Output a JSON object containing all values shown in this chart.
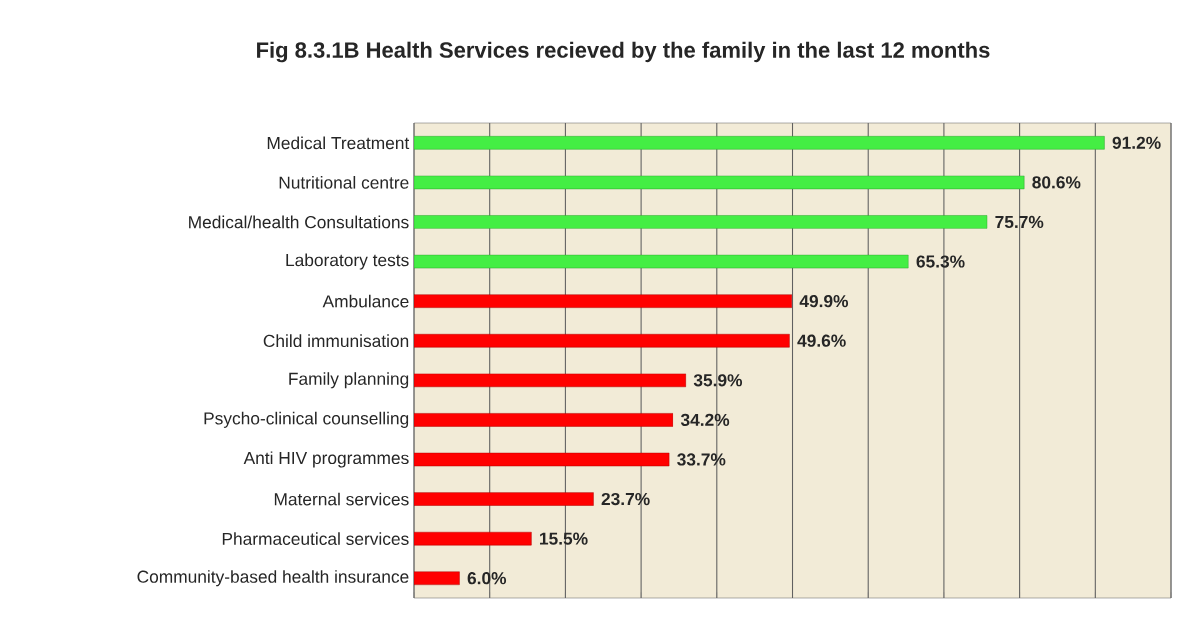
{
  "chart_data": {
    "type": "bar",
    "orientation": "horizontal",
    "title": "Fig 8.3.1B Health Services recieved by the family in the last 12 months",
    "categories": [
      "Medical Treatment",
      "Nutritional centre",
      "Medical/health Consultations",
      "Laboratory tests",
      "Ambulance",
      "Child immunisation",
      "Family planning",
      "Psycho-clinical counselling",
      "Anti HIV programmes",
      "Maternal services",
      "Pharmaceutical services",
      "Community-based health insurance"
    ],
    "values": [
      91.2,
      80.6,
      75.7,
      65.3,
      49.9,
      49.6,
      35.9,
      34.2,
      33.7,
      23.7,
      15.5,
      6.0
    ],
    "colors": [
      "#44ee44",
      "#44ee44",
      "#44ee44",
      "#44ee44",
      "#ff0000",
      "#ff0000",
      "#ff0000",
      "#ff0000",
      "#ff0000",
      "#ff0000",
      "#ff0000",
      "#ff0000"
    ],
    "value_labels": [
      "91.2%",
      "80.6%",
      "75.7%",
      "65.3%",
      "49.9%",
      "49.6%",
      "35.9%",
      "34.2%",
      "33.7%",
      "23.7%",
      "15.5%",
      "6.0%"
    ],
    "xlim": [
      0,
      100
    ],
    "xticks": [
      {
        "value": 0,
        "label": null
      },
      {
        "value": 10,
        "label": null
      },
      {
        "value": 20,
        "label": null
      },
      {
        "value": 30,
        "label": null
      },
      {
        "value": 40,
        "label": null
      },
      {
        "value": 50,
        "label": null
      },
      {
        "value": 60,
        "label": null
      },
      {
        "value": 70,
        "label": null
      },
      {
        "value": 80,
        "label": null
      },
      {
        "value": 90,
        "label": null
      },
      {
        "value": 100,
        "label": null
      }
    ],
    "grid": "x",
    "tick_labels": "y"
  }
}
